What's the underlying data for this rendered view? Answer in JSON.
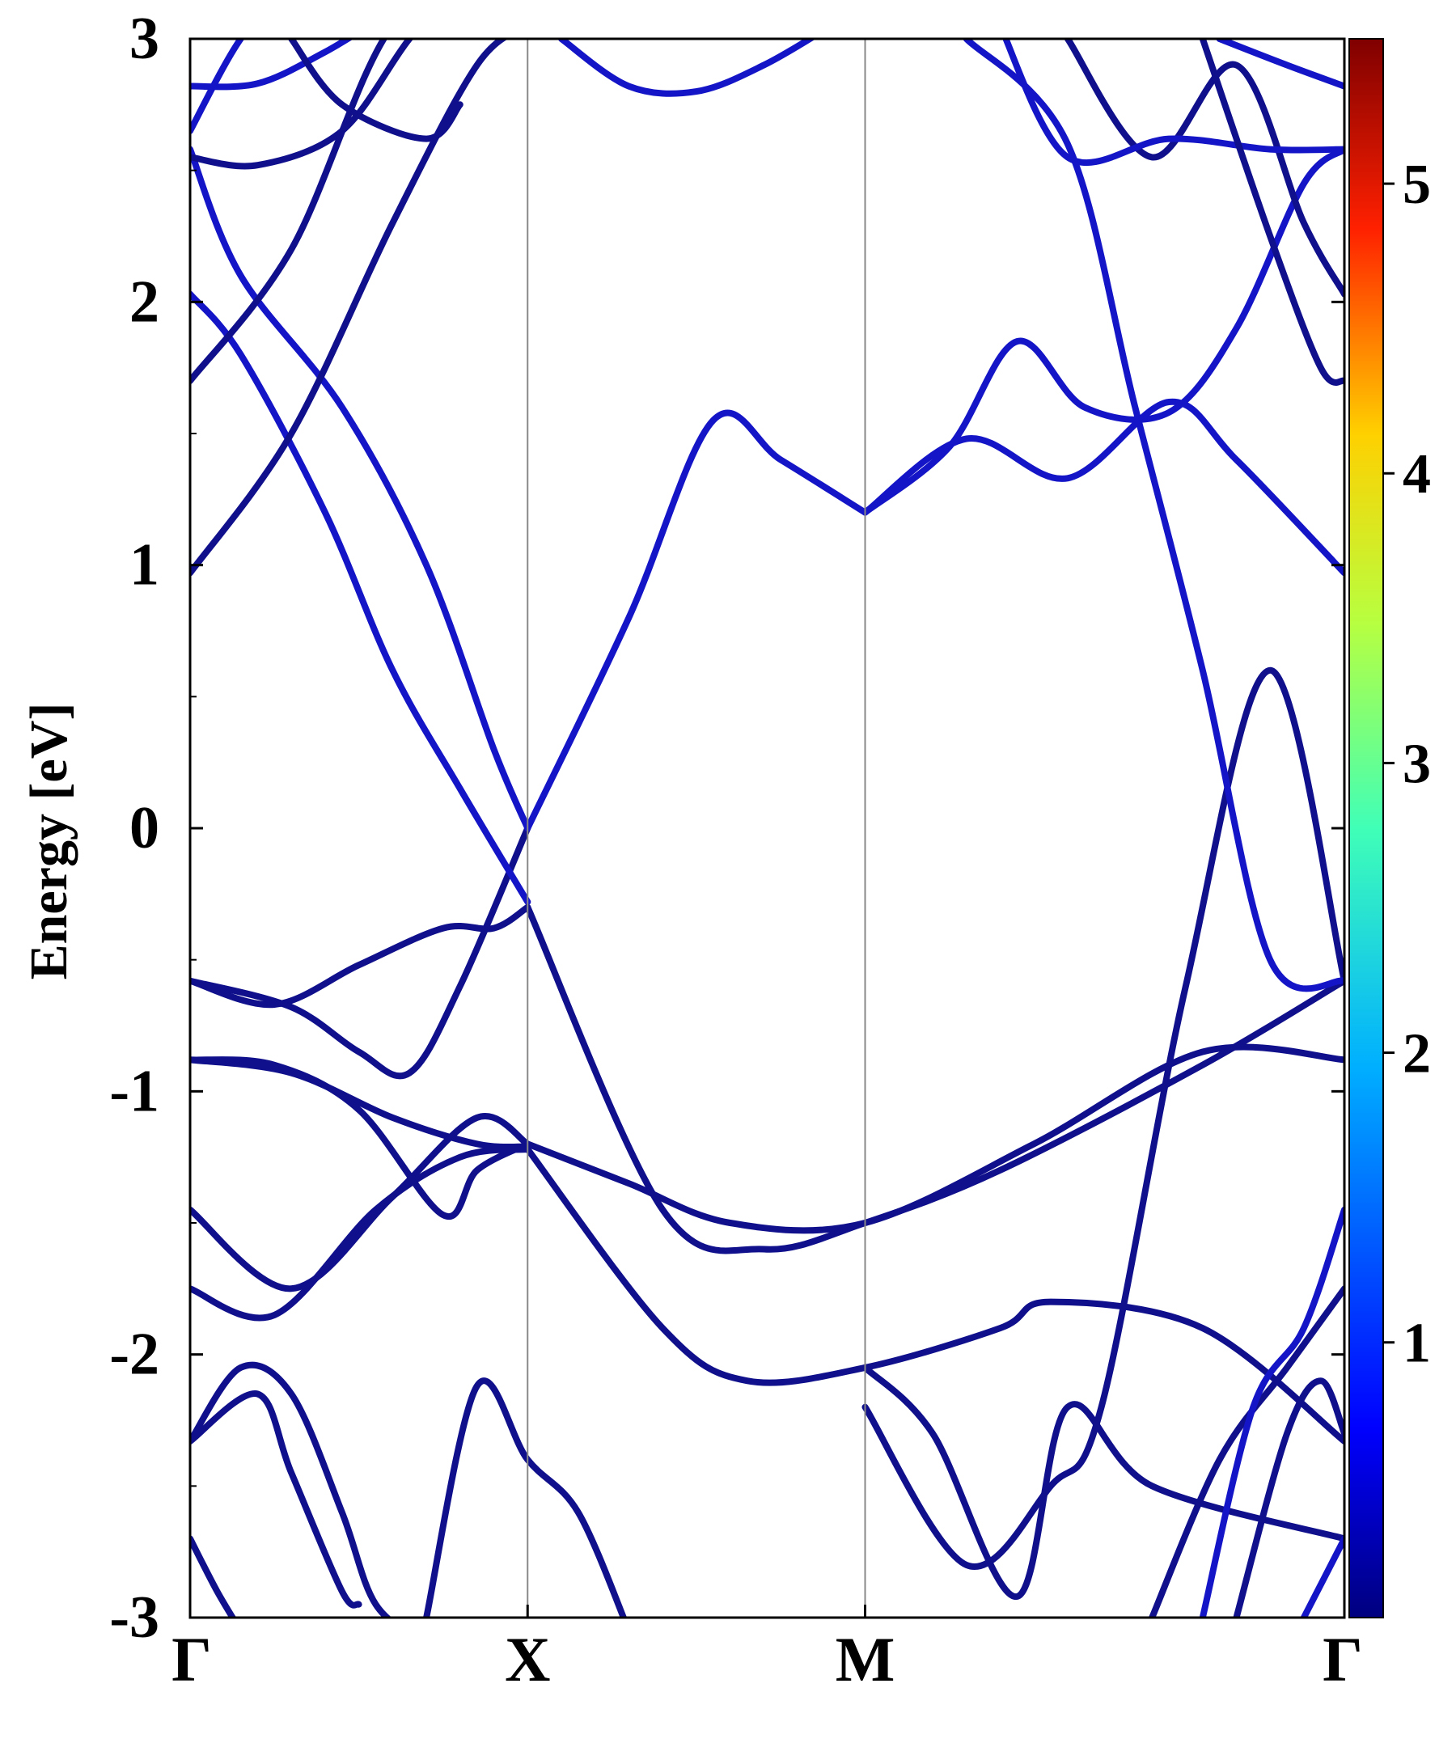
{
  "chart_data": {
    "type": "line",
    "subtype": "electronic band structure with projected weight colormap",
    "title": "",
    "xlabel": "",
    "ylabel": "Energy [eV]",
    "ylim": [
      -3,
      3
    ],
    "y_ticks": [
      "3",
      "2",
      "1",
      "0",
      "-1",
      "-2",
      "-3"
    ],
    "y_tick_values": [
      3,
      2,
      1,
      0,
      -1,
      -2,
      -3
    ],
    "k_path_labels": [
      "Γ",
      "X",
      "M",
      "Γ"
    ],
    "k_path_positions": [
      0,
      1,
      2,
      3.42
    ],
    "vertical_gridlines_at_labels": true,
    "colorbar": {
      "colormap": "jet",
      "range": [
        0.05,
        5.5
      ],
      "ticks": [
        "1",
        "2",
        "3",
        "4",
        "5"
      ],
      "tick_values": [
        1,
        2,
        3,
        4,
        5
      ]
    },
    "line_color": "#1515c8",
    "dark_line_color": "#10108c",
    "series": [
      {
        "k": [
          0,
          0.25,
          0.5,
          0.75,
          0.9,
          1.0
        ],
        "y": [
          -0.58,
          -0.67,
          -0.52,
          -0.38,
          -0.38,
          -0.3
        ],
        "tone": "dark"
      },
      {
        "k": [
          0,
          0.3,
          0.5,
          0.65,
          0.8,
          1.0
        ],
        "y": [
          -0.58,
          -0.68,
          -0.85,
          -0.93,
          -0.6,
          0.0
        ],
        "tone": "dark"
      },
      {
        "k": [
          0,
          0.3,
          0.6,
          0.85,
          1.0
        ],
        "y": [
          -0.88,
          -0.93,
          -1.1,
          -1.2,
          -1.21
        ],
        "tone": "dark"
      },
      {
        "k": [
          0,
          0.25,
          0.5,
          0.75,
          0.85,
          1.0
        ],
        "y": [
          -0.88,
          -0.9,
          -1.07,
          -1.47,
          -1.3,
          -1.2
        ],
        "tone": "dark"
      },
      {
        "k": [
          0,
          0.3,
          0.6,
          0.85,
          1.0
        ],
        "y": [
          -1.45,
          -1.75,
          -1.4,
          -1.1,
          -1.2
        ],
        "tone": "dark"
      },
      {
        "k": [
          0,
          0.25,
          0.55,
          0.8,
          1.0
        ],
        "y": [
          -1.75,
          -1.85,
          -1.45,
          -1.25,
          -1.22
        ],
        "tone": "dark"
      },
      {
        "k": [
          0,
          0.2,
          0.3,
          0.45,
          0.5
        ],
        "y": [
          -2.33,
          -2.15,
          -2.45,
          -2.9,
          -2.95
        ],
        "tone": "dark"
      },
      {
        "k": [
          0,
          0.15,
          0.3,
          0.45,
          0.55,
          0.7
        ],
        "y": [
          -2.33,
          -2.05,
          -2.15,
          -2.6,
          -2.95,
          -3.1
        ],
        "tone": "dark"
      },
      {
        "k": [
          0,
          0.08,
          0.15
        ],
        "y": [
          -2.7,
          -2.9,
          -3.05
        ],
        "tone": "dark"
      },
      {
        "k": [
          0.7,
          0.85,
          1.0,
          1.15,
          1.3
        ],
        "y": [
          -3.0,
          -2.12,
          -2.4,
          -2.6,
          -3.05
        ],
        "tone": "dark"
      },
      {
        "k": [
          0,
          0.15,
          0.4,
          0.6,
          0.8,
          1.0
        ],
        "y": [
          2.03,
          1.8,
          1.2,
          0.6,
          0.15,
          -0.28
        ],
        "tone": "blue"
      },
      {
        "k": [
          0,
          0.15,
          0.45,
          0.7,
          0.9,
          1.0
        ],
        "y": [
          2.58,
          2.1,
          1.6,
          1.0,
          0.3,
          0.0
        ],
        "tone": "blue"
      },
      {
        "k": [
          0,
          0.3,
          0.6,
          0.85,
          1.0
        ],
        "y": [
          0.97,
          1.5,
          2.3,
          2.9,
          3.05
        ],
        "tone": "dark"
      },
      {
        "k": [
          0,
          0.3,
          0.6,
          0.9,
          1.0
        ],
        "y": [
          1.7,
          2.2,
          3.05,
          3.2,
          3.3
        ],
        "tone": "dark"
      },
      {
        "k": [
          0,
          0.2,
          0.45,
          0.65,
          0.8
        ],
        "y": [
          2.55,
          2.52,
          2.65,
          3.0,
          3.2
        ],
        "tone": "dark"
      },
      {
        "k": [
          0,
          0.15,
          0.3,
          0.5
        ],
        "y": [
          2.65,
          3.0,
          3.2,
          3.3
        ],
        "tone": "blue"
      },
      {
        "k": [
          0,
          0.2,
          0.4,
          0.6,
          0.8,
          1.0
        ],
        "y": [
          2.82,
          2.83,
          2.95,
          3.1,
          3.2,
          3.3
        ],
        "tone": "blue"
      },
      {
        "k": [
          0.3,
          0.45,
          0.7,
          0.8
        ],
        "y": [
          3.0,
          2.75,
          2.62,
          2.75
        ],
        "tone": "dark"
      },
      {
        "k": [
          1.1,
          1.3,
          1.5,
          1.7,
          1.9
        ],
        "y": [
          3.0,
          2.82,
          2.8,
          2.9,
          3.05
        ],
        "tone": "blue"
      },
      {
        "k": [
          1.0,
          1.3,
          1.55,
          1.75,
          2.0
        ],
        "y": [
          0.0,
          0.8,
          1.55,
          1.4,
          1.2
        ],
        "tone": "blue"
      },
      {
        "k": [
          2.0,
          2.25,
          2.45,
          2.65,
          2.9,
          3.1,
          3.3,
          3.42
        ],
        "y": [
          1.2,
          1.45,
          1.85,
          1.6,
          1.58,
          1.9,
          2.45,
          2.58
        ],
        "tone": "blue"
      },
      {
        "k": [
          2.0,
          2.3,
          2.6,
          2.9,
          3.1,
          3.42
        ],
        "y": [
          1.2,
          1.48,
          1.33,
          1.62,
          1.4,
          0.97
        ],
        "tone": "blue"
      },
      {
        "k": [
          1.0,
          1.3,
          1.6,
          2.0,
          2.5,
          3.0,
          3.42
        ],
        "y": [
          -1.2,
          -1.35,
          -1.5,
          -1.5,
          -1.2,
          -0.85,
          -0.88
        ],
        "tone": "dark"
      },
      {
        "k": [
          1.0,
          1.4,
          1.7,
          2.0,
          2.4,
          3.0,
          3.42
        ],
        "y": [
          -0.3,
          -1.45,
          -1.6,
          -1.5,
          -1.3,
          -0.9,
          -0.58
        ],
        "tone": "dark"
      },
      {
        "k": [
          1.0,
          1.4,
          1.65,
          2.0,
          2.4,
          2.55,
          3.0,
          3.42
        ],
        "y": [
          -1.22,
          -1.9,
          -2.1,
          -2.05,
          -1.9,
          -1.8,
          -1.9,
          -2.33
        ],
        "tone": "dark"
      },
      {
        "k": [
          2.0,
          2.2,
          2.45,
          2.6,
          2.85,
          3.42
        ],
        "y": [
          -2.05,
          -2.3,
          -2.92,
          -2.2,
          -2.5,
          -2.7
        ],
        "tone": "dark"
      },
      {
        "k": [
          2.0,
          2.3,
          2.55,
          2.7,
          2.95,
          3.2,
          3.42
        ],
        "y": [
          -2.2,
          -2.8,
          -2.5,
          -2.2,
          -0.6,
          0.6,
          -0.58
        ],
        "tone": "dark"
      },
      {
        "k": [
          2.3,
          2.6,
          2.8,
          3.0,
          3.2,
          3.42
        ],
        "y": [
          3.0,
          2.6,
          1.6,
          0.6,
          -0.5,
          -0.58
        ],
        "tone": "blue"
      },
      {
        "k": [
          2.6,
          2.85,
          3.1,
          3.3,
          3.42
        ],
        "y": [
          3.0,
          2.55,
          2.9,
          2.3,
          2.03
        ],
        "tone": "dark"
      },
      {
        "k": [
          2.4,
          2.6,
          2.9,
          3.2,
          3.42
        ],
        "y": [
          3.05,
          2.55,
          2.62,
          2.58,
          2.58
        ],
        "tone": "blue"
      },
      {
        "k": [
          3.0,
          3.2,
          3.35,
          3.42
        ],
        "y": [
          3.0,
          2.25,
          1.75,
          1.7
        ],
        "tone": "dark"
      },
      {
        "k": [
          3.05,
          3.25,
          3.42
        ],
        "y": [
          3.0,
          2.9,
          2.82
        ],
        "tone": "blue"
      },
      {
        "k": [
          2.85,
          3.05,
          3.25,
          3.42
        ],
        "y": [
          -3.0,
          -2.4,
          -2.05,
          -1.75
        ],
        "tone": "dark"
      },
      {
        "k": [
          3.0,
          3.15,
          3.3,
          3.42
        ],
        "y": [
          -3.0,
          -2.2,
          -1.9,
          -1.45
        ],
        "tone": "blue"
      },
      {
        "k": [
          3.1,
          3.25,
          3.35,
          3.42
        ],
        "y": [
          -3.0,
          -2.3,
          -2.1,
          -2.3
        ],
        "tone": "dark"
      },
      {
        "k": [
          3.3,
          3.42
        ],
        "y": [
          -3.0,
          -2.7
        ],
        "tone": "blue"
      }
    ]
  }
}
